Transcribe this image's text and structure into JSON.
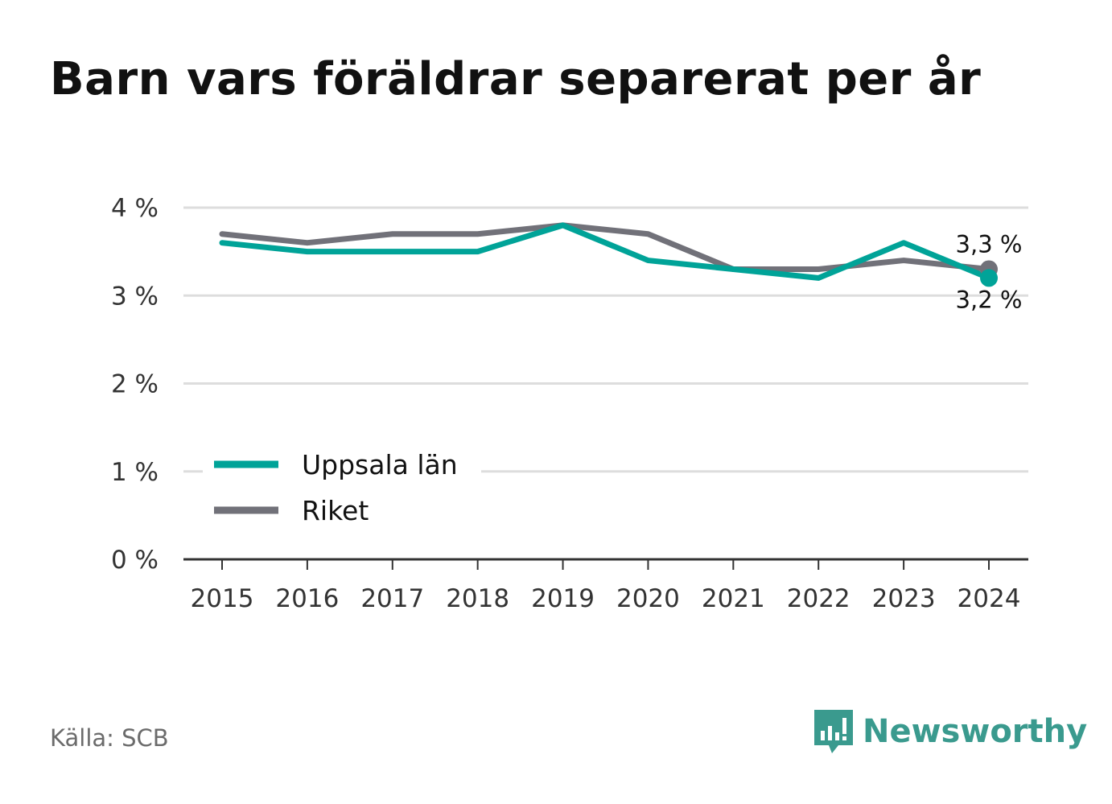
{
  "title": "Barn vars föräldrar separerat per år",
  "source": "Källa: SCB",
  "brand": {
    "name": "Newsworthy",
    "icon": "newsworthy-logo-icon",
    "color": "#3a9a8e"
  },
  "chart_data": {
    "type": "line",
    "title": "Barn vars föräldrar separerat per år",
    "xlabel": "",
    "ylabel": "",
    "x": [
      "2015",
      "2016",
      "2017",
      "2018",
      "2019",
      "2020",
      "2021",
      "2022",
      "2023",
      "2024"
    ],
    "yticks": [
      "0 %",
      "1 %",
      "2 %",
      "3 %",
      "4 %"
    ],
    "ylim": [
      0,
      4
    ],
    "grid": true,
    "legend_position": "bottom-left",
    "series": [
      {
        "name": "Uppsala län",
        "color": "#00a398",
        "values": [
          3.6,
          3.5,
          3.5,
          3.5,
          3.8,
          3.4,
          3.3,
          3.2,
          3.6,
          3.2
        ],
        "end_label": "3,2 %"
      },
      {
        "name": "Riket",
        "color": "#717179",
        "values": [
          3.7,
          3.6,
          3.7,
          3.7,
          3.8,
          3.7,
          3.3,
          3.3,
          3.4,
          3.3
        ],
        "end_label": "3,3 %"
      }
    ]
  }
}
